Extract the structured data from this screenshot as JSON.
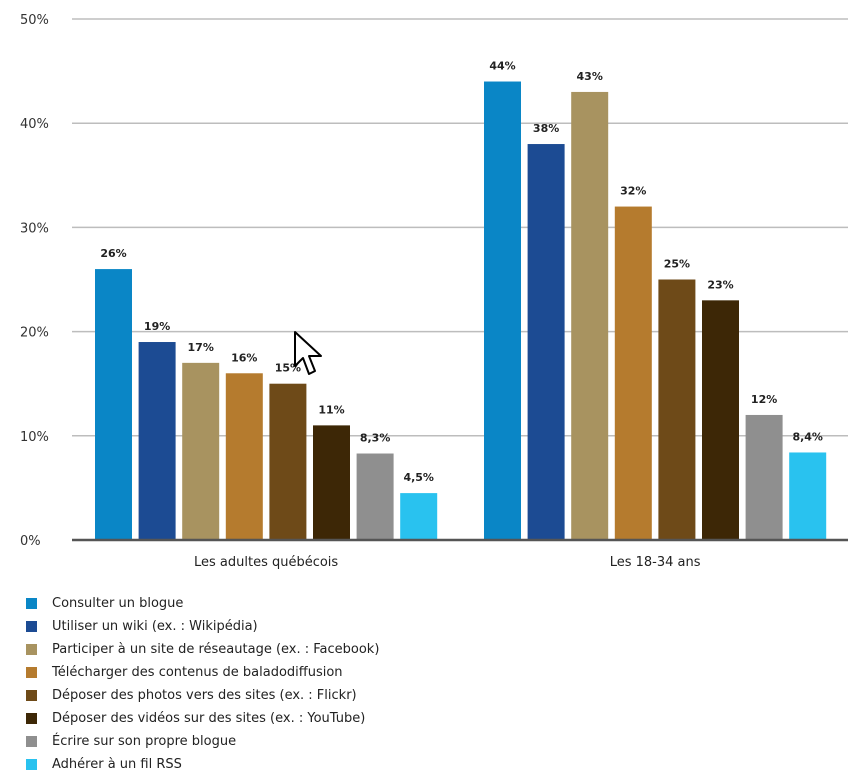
{
  "chart_data": {
    "type": "bar",
    "title": "",
    "xlabel": "",
    "ylabel": "",
    "ylim": [
      0,
      50
    ],
    "yticks": [
      "0%",
      "10%",
      "20%",
      "30%",
      "40%",
      "50%"
    ],
    "ytick_values": [
      0,
      10,
      20,
      30,
      40,
      50
    ],
    "grid": true,
    "legend_position": "bottom-left",
    "categories": [
      "Les adultes québécois",
      "Les 18-34 ans"
    ],
    "series": [
      {
        "name": "Consulter un blogue",
        "color": "#0a86c6",
        "values": [
          26,
          44
        ],
        "labels": [
          "26%",
          "44%"
        ]
      },
      {
        "name": "Utiliser un wiki (ex. : Wikipédia)",
        "color": "#1c4b93",
        "values": [
          19,
          38
        ],
        "labels": [
          "19%",
          "38%"
        ]
      },
      {
        "name": "Participer à un site de réseautage (ex. : Facebook)",
        "color": "#a89360",
        "values": [
          17,
          43
        ],
        "labels": [
          "17%",
          "43%"
        ]
      },
      {
        "name": "Télécharger des contenus de baladodiffusion",
        "color": "#b57b2e",
        "values": [
          16,
          32
        ],
        "labels": [
          "16%",
          "32%"
        ]
      },
      {
        "name": "Déposer des photos vers des sites (ex. : Flickr)",
        "color": "#6e4a18",
        "values": [
          15,
          25
        ],
        "labels": [
          "15%",
          "25%"
        ]
      },
      {
        "name": "Déposer des vidéos sur des sites (ex. : YouTube)",
        "color": "#3d2706",
        "values": [
          11,
          23
        ],
        "labels": [
          "11%",
          "23%"
        ]
      },
      {
        "name": "Écrire sur son propre blogue",
        "color": "#8f8f8f",
        "values": [
          8.3,
          12
        ],
        "labels": [
          "8,3%",
          "12%"
        ]
      },
      {
        "name": "Adhérer à un fil RSS",
        "color": "#29c2ef",
        "values": [
          4.5,
          8.4
        ],
        "labels": [
          "4,5%",
          "8,4%"
        ]
      }
    ]
  },
  "cursor": {
    "icon": "mouse-pointer-icon"
  }
}
